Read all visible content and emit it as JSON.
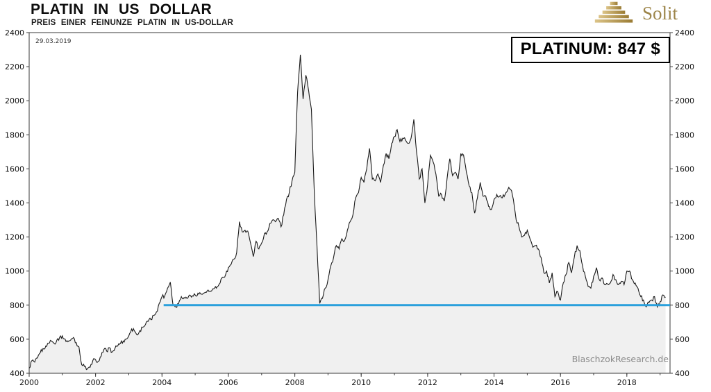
{
  "header": {
    "title": "PLATIN IN US DOLLAR",
    "subtitle": "PREIS EINER FEINUNZE PLATIN IN US-DOLLAR",
    "logo_text": "Solit"
  },
  "annotations": {
    "date": "29.03.2019",
    "price_label": "PLATINUM: 847 $",
    "watermark": "BlaschzokResearch.de"
  },
  "colors": {
    "line": "#1a1a1a",
    "fill": "#f0f0f0",
    "support": "#2aa0dc",
    "axis": "#3a3a3a",
    "logo_gold": "#9d8549"
  },
  "chart_data": {
    "type": "line",
    "title": "PLATIN IN US DOLLAR",
    "subtitle": "PREIS EINER FEINUNZE PLATIN IN US-DOLLAR",
    "xlabel": "",
    "ylabel": "",
    "xlim": [
      2000,
      2019.3
    ],
    "ylim": [
      400,
      2400
    ],
    "yticks": [
      400,
      600,
      800,
      1000,
      1200,
      1400,
      1600,
      1800,
      2000,
      2200,
      2400
    ],
    "xticks_major": [
      2000,
      2002,
      2004,
      2006,
      2008,
      2010,
      2012,
      2014,
      2016,
      2018
    ],
    "xticks_minor": [
      2000,
      2001,
      2002,
      2003,
      2004,
      2005,
      2006,
      2007,
      2008,
      2009,
      2010,
      2011,
      2012,
      2013,
      2014,
      2015,
      2016,
      2017,
      2018,
      2019
    ],
    "grid": false,
    "legend": false,
    "support_line": {
      "y": 800,
      "x_start": 2004.05,
      "x_end": 2019.3
    },
    "last_value": 847,
    "x_start": 2000.0,
    "x_step": 0.0833333,
    "series": [
      {
        "name": "Platin in US-Dollar",
        "values": [
          430,
          475,
          465,
          490,
          520,
          545,
          560,
          575,
          590,
          575,
          595,
          610,
          620,
          600,
          585,
          595,
          610,
          580,
          555,
          450,
          440,
          425,
          435,
          475,
          480,
          470,
          500,
          540,
          530,
          550,
          525,
          545,
          560,
          575,
          590,
          600,
          620,
          660,
          650,
          625,
          650,
          670,
          685,
          705,
          715,
          740,
          760,
          810,
          850,
          855,
          900,
          935,
          800,
          790,
          810,
          850,
          845,
          840,
          860,
          855,
          860,
          870,
          865,
          870,
          875,
          880,
          885,
          900,
          910,
          930,
          965,
          980,
          1020,
          1040,
          1070,
          1110,
          1290,
          1230,
          1240,
          1235,
          1165,
          1085,
          1175,
          1130,
          1165,
          1220,
          1230,
          1280,
          1300,
          1290,
          1310,
          1260,
          1330,
          1420,
          1460,
          1530,
          1580,
          2050,
          2270,
          2010,
          2150,
          2060,
          1950,
          1480,
          1150,
          810,
          840,
          900,
          950,
          1030,
          1080,
          1150,
          1130,
          1190,
          1180,
          1240,
          1290,
          1330,
          1430,
          1460,
          1550,
          1520,
          1600,
          1720,
          1540,
          1530,
          1570,
          1520,
          1620,
          1690,
          1660,
          1750,
          1790,
          1830,
          1760,
          1780,
          1770,
          1750,
          1780,
          1890,
          1700,
          1540,
          1600,
          1400,
          1510,
          1680,
          1640,
          1570,
          1440,
          1450,
          1410,
          1540,
          1660,
          1560,
          1580,
          1540,
          1690,
          1680,
          1580,
          1500,
          1460,
          1340,
          1430,
          1520,
          1440,
          1440,
          1380,
          1360,
          1420,
          1450,
          1440,
          1430,
          1450,
          1480,
          1480,
          1420,
          1300,
          1260,
          1200,
          1210,
          1240,
          1190,
          1140,
          1150,
          1130,
          1080,
          990,
          1000,
          930,
          990,
          850,
          880,
          830,
          930,
          980,
          1050,
          990,
          1080,
          1150,
          1120,
          1030,
          970,
          910,
          900,
          970,
          1020,
          950,
          960,
          920,
          925,
          930,
          980,
          950,
          920,
          940,
          920,
          1000,
          1000,
          950,
          930,
          900,
          850,
          830,
          790,
          815,
          830,
          850,
          790,
          820,
          860,
          847
        ]
      }
    ]
  }
}
